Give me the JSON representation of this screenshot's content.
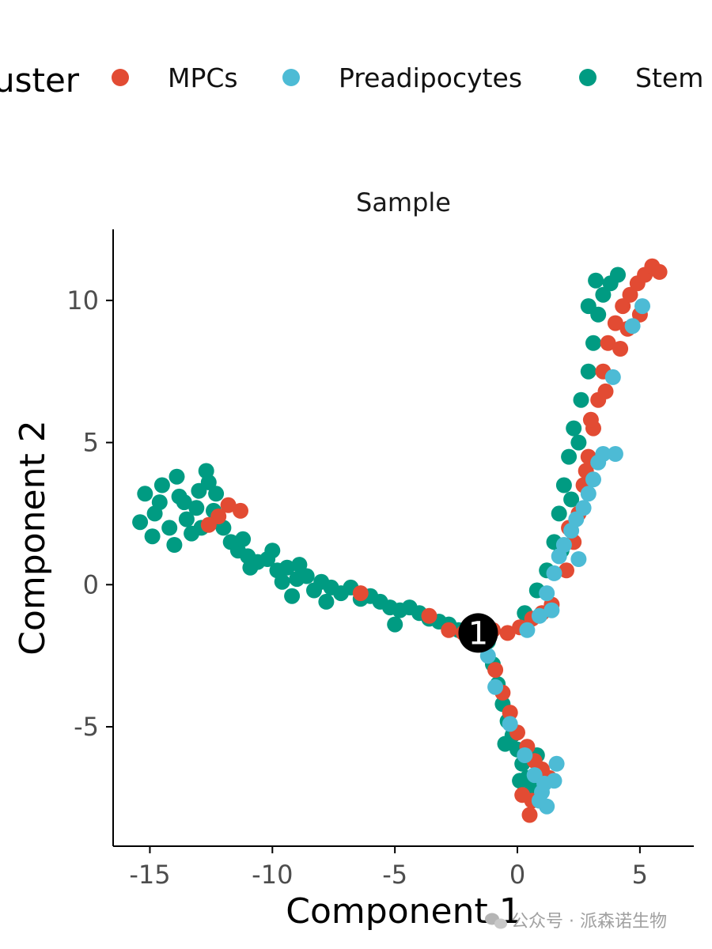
{
  "chart_data": {
    "type": "scatter",
    "title": "Sample",
    "xlabel": "Component 1",
    "ylabel": "Component 2",
    "xlim": [
      -16.5,
      7.2
    ],
    "ylim": [
      -9.2,
      12.5
    ],
    "x_ticks": [
      -15,
      -10,
      -5,
      0,
      5
    ],
    "y_ticks": [
      -5,
      0,
      5,
      10
    ],
    "x_tick_labels": [
      "-15",
      "-10",
      "-5",
      "0",
      "5"
    ],
    "y_tick_labels": [
      "-5",
      "0",
      "5",
      "10"
    ],
    "grid": false,
    "legend": {
      "title": "Cluster",
      "visible_title": "uster",
      "position": "top",
      "entries": [
        {
          "label": "MPCs",
          "color": "#E24B33"
        },
        {
          "label": "Preadipocytes",
          "color": "#4DBBD5"
        },
        {
          "label": "Stem",
          "visible_label": "Stem",
          "color": "#009B82"
        }
      ]
    },
    "branch_point": {
      "label": "1",
      "x": -1.6,
      "y": -1.7
    },
    "series": [
      {
        "name": "Stem",
        "color": "#009B82",
        "points": [
          [
            -15.2,
            3.2
          ],
          [
            -14.8,
            2.5
          ],
          [
            -14.5,
            3.5
          ],
          [
            -14.2,
            2.0
          ],
          [
            -13.9,
            3.8
          ],
          [
            -13.6,
            2.9
          ],
          [
            -13.3,
            1.8
          ],
          [
            -13.0,
            3.3
          ],
          [
            -12.7,
            4.0
          ],
          [
            -12.4,
            2.6
          ],
          [
            -15.4,
            2.2
          ],
          [
            -14.9,
            1.7
          ],
          [
            -14.0,
            1.4
          ],
          [
            -13.5,
            2.3
          ],
          [
            -12.9,
            2.0
          ],
          [
            -12.6,
            3.6
          ],
          [
            -12.3,
            3.2
          ],
          [
            -14.6,
            2.9
          ],
          [
            -13.8,
            3.1
          ],
          [
            -13.1,
            2.7
          ],
          [
            -12.0,
            2.0
          ],
          [
            -11.7,
            1.5
          ],
          [
            -11.4,
            1.2
          ],
          [
            -11.0,
            1.0
          ],
          [
            -10.6,
            0.8
          ],
          [
            -10.2,
            0.9
          ],
          [
            -9.8,
            0.5
          ],
          [
            -9.4,
            0.6
          ],
          [
            -9.0,
            0.2
          ],
          [
            -8.6,
            0.3
          ],
          [
            -10.9,
            0.6
          ],
          [
            -10.0,
            1.2
          ],
          [
            -9.6,
            0.1
          ],
          [
            -8.9,
            0.7
          ],
          [
            -8.3,
            -0.2
          ],
          [
            -8.0,
            0.1
          ],
          [
            -7.6,
            -0.1
          ],
          [
            -7.2,
            -0.3
          ],
          [
            -6.8,
            -0.1
          ],
          [
            -6.4,
            -0.5
          ],
          [
            -6.0,
            -0.4
          ],
          [
            -5.6,
            -0.6
          ],
          [
            -5.2,
            -0.8
          ],
          [
            -4.8,
            -0.9
          ],
          [
            -4.4,
            -0.8
          ],
          [
            -4.0,
            -1.0
          ],
          [
            -3.6,
            -1.2
          ],
          [
            -3.2,
            -1.3
          ],
          [
            -2.8,
            -1.4
          ],
          [
            -2.4,
            -1.6
          ],
          [
            -5.0,
            -1.4
          ],
          [
            -7.8,
            -0.6
          ],
          [
            -9.2,
            -0.4
          ],
          [
            -11.2,
            1.6
          ],
          [
            -1.2,
            -2.0
          ],
          [
            -1.0,
            -2.8
          ],
          [
            -0.8,
            -3.5
          ],
          [
            -0.6,
            -4.2
          ],
          [
            -0.4,
            -4.8
          ],
          [
            -0.2,
            -5.3
          ],
          [
            0.0,
            -5.8
          ],
          [
            0.2,
            -6.3
          ],
          [
            0.4,
            -6.8
          ],
          [
            0.6,
            -7.2
          ],
          [
            -0.5,
            -5.6
          ],
          [
            0.1,
            -6.9
          ],
          [
            0.8,
            -6.0
          ],
          [
            0.3,
            -1.0
          ],
          [
            0.8,
            -0.2
          ],
          [
            1.2,
            0.5
          ],
          [
            1.5,
            1.5
          ],
          [
            1.7,
            2.5
          ],
          [
            1.9,
            3.5
          ],
          [
            2.1,
            4.5
          ],
          [
            2.3,
            5.5
          ],
          [
            2.6,
            6.5
          ],
          [
            2.9,
            7.5
          ],
          [
            3.1,
            8.5
          ],
          [
            3.3,
            9.5
          ],
          [
            3.5,
            10.2
          ],
          [
            3.8,
            10.6
          ],
          [
            4.1,
            10.9
          ],
          [
            3.2,
            10.7
          ],
          [
            2.9,
            9.8
          ],
          [
            2.2,
            3.0
          ],
          [
            1.8,
            1.2
          ],
          [
            2.5,
            5.0
          ]
        ]
      },
      {
        "name": "MPCs",
        "color": "#E24B33",
        "points": [
          [
            -12.2,
            2.4
          ],
          [
            -11.8,
            2.8
          ],
          [
            -11.3,
            2.6
          ],
          [
            -12.6,
            2.1
          ],
          [
            -6.4,
            -0.3
          ],
          [
            -3.6,
            -1.1
          ],
          [
            -2.8,
            -1.6
          ],
          [
            -2.2,
            -1.7
          ],
          [
            -1.0,
            -1.6
          ],
          [
            -0.4,
            -1.7
          ],
          [
            0.1,
            -1.5
          ],
          [
            0.6,
            -1.2
          ],
          [
            1.0,
            -1.0
          ],
          [
            1.4,
            -0.7
          ],
          [
            2.0,
            0.5
          ],
          [
            2.3,
            1.5
          ],
          [
            2.5,
            2.5
          ],
          [
            2.7,
            3.5
          ],
          [
            2.9,
            4.5
          ],
          [
            3.1,
            5.5
          ],
          [
            3.3,
            6.5
          ],
          [
            3.5,
            7.5
          ],
          [
            3.7,
            8.5
          ],
          [
            4.0,
            9.2
          ],
          [
            4.3,
            9.8
          ],
          [
            4.6,
            10.2
          ],
          [
            4.9,
            10.6
          ],
          [
            5.2,
            10.9
          ],
          [
            5.5,
            11.2
          ],
          [
            5.8,
            11.0
          ],
          [
            4.5,
            9.0
          ],
          [
            5.0,
            9.5
          ],
          [
            4.2,
            8.3
          ],
          [
            3.6,
            6.8
          ],
          [
            3.0,
            5.8
          ],
          [
            2.8,
            4.0
          ],
          [
            2.1,
            2.0
          ],
          [
            -0.9,
            -3.0
          ],
          [
            -0.6,
            -3.8
          ],
          [
            -0.3,
            -4.5
          ],
          [
            0.0,
            -5.2
          ],
          [
            0.4,
            -5.7
          ],
          [
            0.7,
            -6.2
          ],
          [
            1.0,
            -6.5
          ],
          [
            1.3,
            -6.8
          ],
          [
            0.6,
            -7.6
          ],
          [
            0.5,
            -8.1
          ],
          [
            0.2,
            -7.4
          ]
        ]
      },
      {
        "name": "Preadipocytes",
        "color": "#4DBBD5",
        "points": [
          [
            -1.2,
            -2.5
          ],
          [
            -0.9,
            -3.6
          ],
          [
            -0.3,
            -4.9
          ],
          [
            0.3,
            -6.0
          ],
          [
            0.7,
            -6.7
          ],
          [
            1.0,
            -7.3
          ],
          [
            1.2,
            -7.8
          ],
          [
            1.5,
            -6.9
          ],
          [
            1.6,
            -6.3
          ],
          [
            1.1,
            -7.0
          ],
          [
            0.9,
            -7.6
          ],
          [
            0.4,
            -1.6
          ],
          [
            0.9,
            -1.1
          ],
          [
            1.2,
            -0.3
          ],
          [
            1.5,
            0.4
          ],
          [
            1.7,
            1.0
          ],
          [
            1.9,
            1.4
          ],
          [
            2.2,
            1.9
          ],
          [
            2.4,
            2.3
          ],
          [
            2.5,
            0.9
          ],
          [
            1.4,
            -0.9
          ],
          [
            2.7,
            2.7
          ],
          [
            2.9,
            3.2
          ],
          [
            3.1,
            3.7
          ],
          [
            3.3,
            4.3
          ],
          [
            3.5,
            4.6
          ],
          [
            4.0,
            4.6
          ],
          [
            4.7,
            9.1
          ],
          [
            5.1,
            9.8
          ],
          [
            3.9,
            7.3
          ]
        ]
      }
    ]
  },
  "watermark": {
    "text": "公众号 · 派森诺生物",
    "icon": "wechat-icon"
  }
}
